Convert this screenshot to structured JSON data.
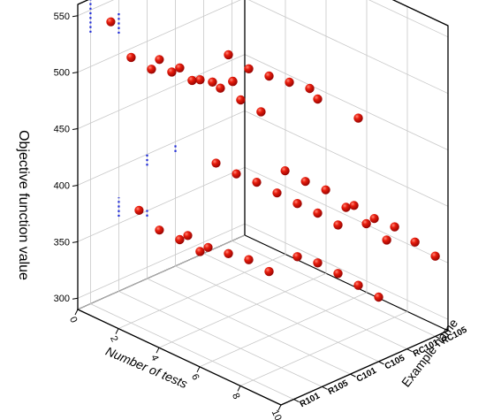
{
  "chart_data": {
    "type": "scatter3d",
    "xlabel": "Number of tests",
    "ylabel": "Example name",
    "zlabel": "Objective function value",
    "x_ticks": [
      "0",
      "2",
      "4",
      "6",
      "8",
      "10"
    ],
    "y_categories": [
      "R101",
      "R105",
      "C101",
      "C105",
      "RC101",
      "RC105"
    ],
    "z_ticks": [
      "300",
      "350",
      "400",
      "450",
      "500",
      "550"
    ],
    "xlim": [
      0,
      10
    ],
    "zlim": [
      290,
      560
    ],
    "grid": true,
    "point_color": "#d40000",
    "min_marker_color": "#1f2bd8",
    "series": [
      {
        "group": "upper",
        "points": [
          {
            "x": 1,
            "y": "R101",
            "z": 548
          },
          {
            "x": 2,
            "y": "R101",
            "z": 525
          },
          {
            "x": 3,
            "y": "R101",
            "z": 523
          },
          {
            "x": 4,
            "y": "R101",
            "z": 529
          },
          {
            "x": 5,
            "y": "R101",
            "z": 530
          },
          {
            "x": 6,
            "y": "R101",
            "z": 537
          },
          {
            "x": 7,
            "y": "R101",
            "z": 546
          },
          {
            "x": 2,
            "y": "R105",
            "z": 512
          },
          {
            "x": 3,
            "y": "R105",
            "z": 513
          },
          {
            "x": 4,
            "y": "R105",
            "z": 511
          },
          {
            "x": 5,
            "y": "R105",
            "z": 512
          },
          {
            "x": 6,
            "y": "R105",
            "z": 510
          },
          {
            "x": 7,
            "y": "R105",
            "z": 508
          },
          {
            "x": 4,
            "y": "C101",
            "z": 522
          },
          {
            "x": 5,
            "y": "C101",
            "z": 518
          },
          {
            "x": 6,
            "y": "C101",
            "z": 520
          },
          {
            "x": 7,
            "y": "C101",
            "z": 523
          },
          {
            "x": 8,
            "y": "C101",
            "z": 526
          },
          {
            "x": 7,
            "y": "C105",
            "z": 497
          },
          {
            "x": 9,
            "y": "C105",
            "z": 497
          }
        ]
      },
      {
        "group": "lower",
        "points": [
          {
            "x": 1,
            "y": "R105",
            "z": 370
          },
          {
            "x": 2,
            "y": "R105",
            "z": 361
          },
          {
            "x": 3,
            "y": "R105",
            "z": 361
          },
          {
            "x": 4,
            "y": "R105",
            "z": 359
          },
          {
            "x": 2,
            "y": "C101",
            "z": 345
          },
          {
            "x": 3,
            "y": "C101",
            "z": 343
          },
          {
            "x": 4,
            "y": "C101",
            "z": 346
          },
          {
            "x": 5,
            "y": "C101",
            "z": 349
          },
          {
            "x": 6,
            "y": "C101",
            "z": 347
          },
          {
            "x": 6,
            "y": "C105",
            "z": 349
          },
          {
            "x": 7,
            "y": "C105",
            "z": 352
          },
          {
            "x": 8,
            "y": "C105",
            "z": 351
          },
          {
            "x": 9,
            "y": "C105",
            "z": 349
          },
          {
            "x": 10,
            "y": "C105",
            "z": 347
          },
          {
            "x": 2,
            "y": "C105",
            "z": 398
          },
          {
            "x": 3,
            "y": "C105",
            "z": 397
          },
          {
            "x": 4,
            "y": "C105",
            "z": 398
          },
          {
            "x": 5,
            "y": "C105",
            "z": 397
          },
          {
            "x": 6,
            "y": "C105",
            "z": 396
          },
          {
            "x": 7,
            "y": "C105",
            "z": 396
          },
          {
            "x": 8,
            "y": "C105",
            "z": 394
          },
          {
            "x": 4,
            "y": "RC101",
            "z": 397
          },
          {
            "x": 5,
            "y": "RC101",
            "z": 396
          },
          {
            "x": 6,
            "y": "RC101",
            "z": 397
          },
          {
            "x": 7,
            "y": "RC101",
            "z": 390
          },
          {
            "x": 8,
            "y": "RC101",
            "z": 384
          },
          {
            "x": 9,
            "y": "RC101",
            "z": 378
          },
          {
            "x": 6,
            "y": "RC105",
            "z": 372
          },
          {
            "x": 7,
            "y": "RC105",
            "z": 369
          },
          {
            "x": 8,
            "y": "RC105",
            "z": 370
          },
          {
            "x": 9,
            "y": "RC105",
            "z": 365
          },
          {
            "x": 10,
            "y": "RC105",
            "z": 361
          }
        ]
      }
    ],
    "min_markers": [
      {
        "y": "R101",
        "z_range": [
          530,
          560
        ]
      },
      {
        "y": "R105",
        "z_range": [
          518,
          537
        ]
      },
      {
        "y": "R105",
        "z_range": [
          356,
          373
        ]
      },
      {
        "y": "C101",
        "z_range": [
          345,
          352
        ]
      },
      {
        "y": "C101",
        "z_range": [
          390,
          400
        ]
      },
      {
        "y": "C105",
        "z_range": [
          391,
          398
        ]
      }
    ]
  }
}
